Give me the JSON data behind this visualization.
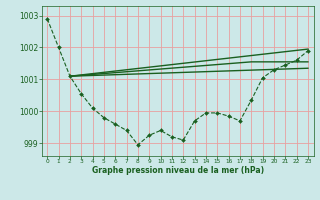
{
  "background_color": "#cce8e8",
  "grid_color": "#e8a0a0",
  "line_color": "#1a6020",
  "xlabel": "Graphe pression niveau de la mer (hPa)",
  "ylim": [
    998.6,
    1003.3
  ],
  "xlim": [
    -0.5,
    23.5
  ],
  "yticks": [
    999,
    1000,
    1001,
    1002,
    1003
  ],
  "xticks": [
    0,
    1,
    2,
    3,
    4,
    5,
    6,
    7,
    8,
    9,
    10,
    11,
    12,
    13,
    14,
    15,
    16,
    17,
    18,
    19,
    20,
    21,
    22,
    23
  ],
  "line1_x": [
    0,
    1,
    2,
    3,
    4,
    5,
    6,
    7,
    8,
    9,
    10,
    11,
    12,
    13,
    14,
    15,
    16,
    17,
    18,
    19,
    20,
    21,
    22,
    23
  ],
  "line1_y": [
    1002.9,
    1002.0,
    1001.1,
    1000.55,
    1000.1,
    999.8,
    999.6,
    999.4,
    998.95,
    999.25,
    999.4,
    999.2,
    999.1,
    999.7,
    999.95,
    999.95,
    999.85,
    999.7,
    1000.35,
    1001.05,
    1001.3,
    1001.45,
    1001.6,
    1001.9
  ],
  "line2_x": [
    2,
    23
  ],
  "line2_y": [
    1001.1,
    1001.95
  ],
  "line3_x": [
    2,
    18,
    23
  ],
  "line3_y": [
    1001.1,
    1001.55,
    1001.55
  ],
  "line4_x": [
    2,
    23
  ],
  "line4_y": [
    1001.1,
    1001.35
  ]
}
